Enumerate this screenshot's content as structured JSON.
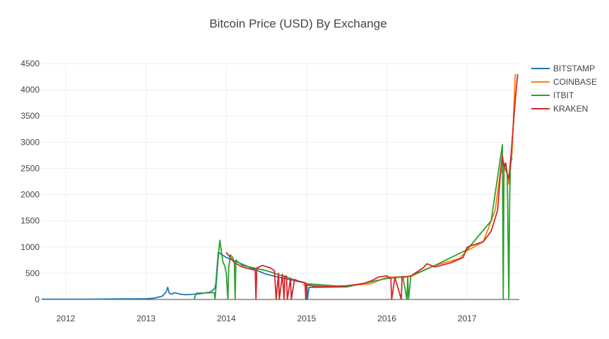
{
  "chart_data": {
    "type": "line",
    "title": "Bitcoin Price (USD) By Exchange",
    "xlabel": "",
    "ylabel": "",
    "xlim": [
      2011.7,
      2017.65
    ],
    "ylim": [
      0,
      4500
    ],
    "x_ticks": [
      2012,
      2013,
      2014,
      2015,
      2016,
      2017
    ],
    "x_tick_labels": [
      "2012",
      "2013",
      "2014",
      "2015",
      "2016",
      "2017"
    ],
    "y_ticks": [
      0,
      500,
      1000,
      1500,
      2000,
      2500,
      3000,
      3500,
      4000,
      4500
    ],
    "y_tick_labels": [
      "0",
      "500",
      "1000",
      "1500",
      "2000",
      "2500",
      "3000",
      "3500",
      "4000",
      "4500"
    ],
    "grid": true,
    "legend_position": "top-right",
    "series": [
      {
        "name": "BITSTAMP",
        "color": "#1f77b4",
        "x": [
          2011.7,
          2012.0,
          2012.3,
          2012.6,
          2012.9,
          2013.0,
          2013.1,
          2013.2,
          2013.25,
          2013.27,
          2013.29,
          2013.32,
          2013.35,
          2013.4,
          2013.45,
          2013.5,
          2013.55,
          2013.6,
          2013.65,
          2013.7,
          2013.75,
          2013.8,
          2013.85,
          2013.86,
          2013.87,
          2013.9,
          2014.0,
          2014.5,
          2014.99,
          2015.0,
          2015.005,
          2015.01,
          2015.03,
          2015.1,
          2015.5
        ],
        "y": [
          5,
          6,
          6,
          10,
          12,
          14,
          25,
          60,
          140,
          230,
          120,
          100,
          130,
          110,
          95,
          90,
          95,
          100,
          105,
          115,
          130,
          140,
          200,
          230,
          300,
          900,
          800,
          480,
          310,
          0,
          260,
          0,
          230,
          230,
          240
        ]
      },
      {
        "name": "COINBASE",
        "color": "#ff7f0e",
        "x": [
          2014.95,
          2015.2,
          2015.5,
          2015.8,
          2016.0,
          2016.3,
          2016.6,
          2016.9,
          2017.0,
          2017.2,
          2017.35,
          2017.42,
          2017.44,
          2017.48,
          2017.52,
          2017.56,
          2017.6
        ],
        "y": [
          280,
          250,
          260,
          300,
          420,
          440,
          650,
          780,
          930,
          1100,
          1700,
          2500,
          2400,
          2600,
          2200,
          2800,
          4300
        ]
      },
      {
        "name": "ITBIT",
        "color": "#2ca02c",
        "x": [
          2013.6,
          2013.62,
          2013.63,
          2013.85,
          2013.86,
          2013.87,
          2013.88,
          2013.9,
          2013.92,
          2013.94,
          2013.96,
          2013.98,
          2014.0,
          2014.02,
          2014.03,
          2014.05,
          2014.08,
          2014.1,
          2014.11,
          2014.12,
          2014.2,
          2014.5,
          2015.0,
          2015.5,
          2016.0,
          2016.2,
          2016.25,
          2016.26,
          2016.27,
          2016.3,
          2016.6,
          2017.0,
          2017.3,
          2017.44,
          2017.45,
          2017.46,
          2017.47,
          2017.5,
          2017.52,
          2017.53,
          2017.54,
          2017.56
        ],
        "y": [
          0,
          100,
          120,
          130,
          0,
          200,
          400,
          800,
          1130,
          900,
          700,
          650,
          500,
          0,
          600,
          850,
          800,
          700,
          0,
          750,
          650,
          550,
          300,
          240,
          400,
          430,
          0,
          430,
          0,
          450,
          650,
          950,
          1500,
          2950,
          0,
          2600,
          2500,
          2400,
          0,
          1900,
          2600,
          2700
        ]
      },
      {
        "name": "KRAKEN",
        "color": "#d62728",
        "x": [
          2014.0,
          2014.05,
          2014.1,
          2014.2,
          2014.3,
          2014.36,
          2014.37,
          2014.38,
          2014.45,
          2014.55,
          2014.6,
          2014.62,
          2014.65,
          2014.66,
          2014.7,
          2014.72,
          2014.73,
          2014.75,
          2014.76,
          2014.8,
          2014.81,
          2014.85,
          2014.9,
          2014.98,
          2014.99,
          2015.0,
          2015.1,
          2015.3,
          2015.5,
          2015.7,
          2015.8,
          2015.9,
          2016.0,
          2016.05,
          2016.06,
          2016.1,
          2016.18,
          2016.19,
          2016.2,
          2016.3,
          2016.45,
          2016.5,
          2016.6,
          2016.8,
          2016.95,
          2017.0,
          2017.1,
          2017.2,
          2017.3,
          2017.38,
          2017.4,
          2017.42,
          2017.44,
          2017.46,
          2017.48,
          2017.5,
          2017.52,
          2017.55,
          2017.58,
          2017.6,
          2017.63
        ],
        "y": [
          900,
          800,
          700,
          620,
          580,
          560,
          0,
          600,
          650,
          600,
          550,
          0,
          500,
          0,
          480,
          0,
          450,
          440,
          0,
          400,
          0,
          380,
          350,
          320,
          0,
          280,
          250,
          240,
          260,
          300,
          350,
          430,
          450,
          400,
          0,
          420,
          0,
          430,
          420,
          450,
          600,
          680,
          620,
          700,
          800,
          1000,
          1050,
          1100,
          1300,
          1700,
          2100,
          2500,
          2750,
          2500,
          2600,
          2400,
          2300,
          2800,
          3400,
          3800,
          4300
        ]
      }
    ]
  }
}
